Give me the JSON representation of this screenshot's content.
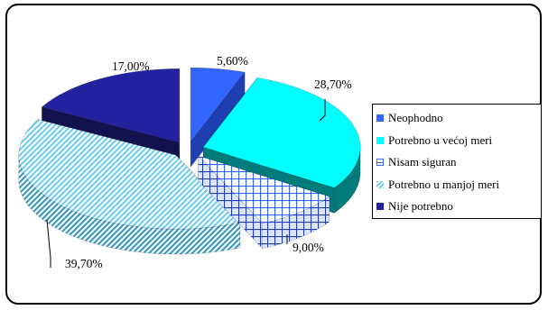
{
  "chart_data": {
    "type": "pie",
    "style": "3d-exploded",
    "title": "",
    "legend_position": "right",
    "categories": [
      "Neophodno",
      "Potrebno u većoj meri",
      "Nisam siguran",
      "Potrebno u manjoj meri",
      "Nije potrebno"
    ],
    "values": [
      5.6,
      28.7,
      9.0,
      39.7,
      17.0
    ],
    "labels": [
      "5,60%",
      "28,70%",
      "9,00%",
      "39,70%",
      "17,00%"
    ],
    "colors": [
      "#3366FF",
      "#00FFFF",
      "#3366FF",
      "#5BC8F0",
      "#2222A0"
    ],
    "side_colors": [
      "#1F3FB0",
      "#007B7B",
      "#1F3FB0",
      "#2E8DB8",
      "#12124F"
    ],
    "patterns": [
      "solid",
      "solid",
      "grid",
      "diagonal",
      "solid"
    ]
  }
}
